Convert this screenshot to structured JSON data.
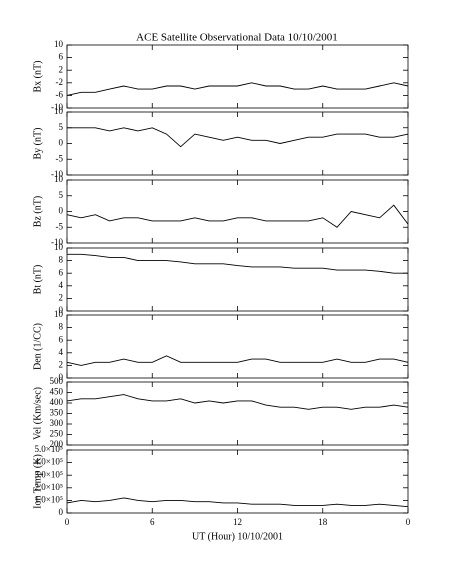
{
  "chart_data": [
    {
      "type": "line",
      "title": "ACE Satellite Observational Data   10/10/2001",
      "ylabel": "Bx (nT)",
      "color": "#000000",
      "xlim": [
        0,
        24
      ],
      "xticks": [
        0,
        6,
        12,
        18,
        {
          "value": 24,
          "label": "0"
        }
      ],
      "ylim": [
        -10,
        10
      ],
      "yticks": [
        -10,
        -6,
        -2,
        2,
        6,
        10
      ],
      "x": [
        0,
        1,
        2,
        3,
        4,
        5,
        6,
        7,
        8,
        9,
        10,
        11,
        12,
        13,
        14,
        15,
        16,
        17,
        18,
        19,
        20,
        21,
        22,
        23,
        24
      ],
      "values": [
        -6,
        -5,
        -5,
        -4,
        -3,
        -4,
        -4,
        -3,
        -3,
        -4,
        -3,
        -3,
        -3,
        -2,
        -3,
        -3,
        -4,
        -4,
        -3,
        -4,
        -4,
        -4,
        -3,
        -2,
        -3
      ]
    },
    {
      "type": "line",
      "ylabel": "By (nT)",
      "color": "#000000",
      "xlim": [
        0,
        24
      ],
      "xticks": [
        0,
        6,
        12,
        18,
        {
          "value": 24,
          "label": "0"
        }
      ],
      "ylim": [
        -10,
        10
      ],
      "yticks": [
        -10,
        -5,
        0,
        5,
        10
      ],
      "x": [
        0,
        1,
        2,
        3,
        4,
        5,
        6,
        7,
        8,
        9,
        10,
        11,
        12,
        13,
        14,
        15,
        16,
        17,
        18,
        19,
        20,
        21,
        22,
        23,
        24
      ],
      "values": [
        5,
        5,
        5,
        4,
        5,
        4,
        5,
        3,
        -1,
        3,
        2,
        1,
        2,
        1,
        1,
        0,
        1,
        2,
        2,
        3,
        3,
        3,
        2,
        2,
        3
      ]
    },
    {
      "type": "line",
      "ylabel": "Bz (nT)",
      "color": "#000000",
      "xlim": [
        0,
        24
      ],
      "xticks": [
        0,
        6,
        12,
        18,
        {
          "value": 24,
          "label": "0"
        }
      ],
      "ylim": [
        -10,
        10
      ],
      "yticks": [
        -10,
        -5,
        0,
        5,
        10
      ],
      "x": [
        0,
        1,
        2,
        3,
        4,
        5,
        6,
        7,
        8,
        9,
        10,
        11,
        12,
        13,
        14,
        15,
        16,
        17,
        18,
        19,
        20,
        21,
        22,
        23,
        24
      ],
      "values": [
        -1,
        -2,
        -1,
        -3,
        -2,
        -2,
        -3,
        -3,
        -3,
        -2,
        -3,
        -3,
        -2,
        -2,
        -3,
        -3,
        -3,
        -3,
        -2,
        -5,
        0,
        -1,
        -2,
        2,
        -4
      ]
    },
    {
      "type": "line",
      "ylabel": "Bt (nT)",
      "color": "#000000",
      "xlim": [
        0,
        24
      ],
      "xticks": [
        0,
        6,
        12,
        18,
        {
          "value": 24,
          "label": "0"
        }
      ],
      "ylim": [
        0,
        10
      ],
      "yticks": [
        0,
        2,
        4,
        6,
        8,
        10
      ],
      "x": [
        0,
        1,
        2,
        3,
        4,
        5,
        6,
        7,
        8,
        9,
        10,
        11,
        12,
        13,
        14,
        15,
        16,
        17,
        18,
        19,
        20,
        21,
        22,
        23,
        24
      ],
      "values": [
        9,
        9,
        8.8,
        8.5,
        8.5,
        8,
        8,
        8,
        7.8,
        7.5,
        7.5,
        7.5,
        7.2,
        7,
        7,
        7,
        6.8,
        6.8,
        6.8,
        6.5,
        6.5,
        6.5,
        6.3,
        6,
        6
      ]
    },
    {
      "type": "line",
      "ylabel": "Den (1/CC)",
      "color": "#000000",
      "xlim": [
        0,
        24
      ],
      "xticks": [
        0,
        6,
        12,
        18,
        {
          "value": 24,
          "label": "0"
        }
      ],
      "ylim": [
        0,
        10
      ],
      "yticks": [
        0,
        2,
        4,
        6,
        8,
        10
      ],
      "x": [
        0,
        1,
        2,
        3,
        4,
        5,
        6,
        7,
        8,
        9,
        10,
        11,
        12,
        13,
        14,
        15,
        16,
        17,
        18,
        19,
        20,
        21,
        22,
        23,
        24
      ],
      "values": [
        2.5,
        2,
        2.5,
        2.5,
        3,
        2.5,
        2.5,
        3.5,
        2.5,
        2.5,
        2.5,
        2.5,
        2.5,
        3,
        3,
        2.5,
        2.5,
        2.5,
        2.5,
        3,
        2.5,
        2.5,
        3,
        3,
        2.5
      ]
    },
    {
      "type": "line",
      "ylabel": "Vel (Km/sec)",
      "color": "#000000",
      "xlim": [
        0,
        24
      ],
      "xticks": [
        0,
        6,
        12,
        18,
        {
          "value": 24,
          "label": "0"
        }
      ],
      "ylim": [
        200,
        500
      ],
      "yticks": [
        200,
        250,
        300,
        350,
        400,
        450,
        500
      ],
      "x": [
        0,
        1,
        2,
        3,
        4,
        5,
        6,
        7,
        8,
        9,
        10,
        11,
        12,
        13,
        14,
        15,
        16,
        17,
        18,
        19,
        20,
        21,
        22,
        23,
        24
      ],
      "values": [
        410,
        420,
        420,
        430,
        440,
        420,
        410,
        410,
        420,
        400,
        410,
        400,
        410,
        410,
        390,
        380,
        380,
        370,
        380,
        380,
        370,
        380,
        380,
        390,
        380
      ]
    },
    {
      "type": "line",
      "ylabel": "Ion Temp (K)",
      "xlabel": "UT (Hour)   10/10/2001",
      "color": "#000000",
      "xlim": [
        0,
        24
      ],
      "xticks": [
        0,
        6,
        12,
        18,
        {
          "value": 24,
          "label": "0"
        }
      ],
      "ylim": [
        0,
        500000
      ],
      "yticks": [
        0,
        {
          "value": 100000,
          "label": "1.0×10⁵"
        },
        {
          "value": 200000,
          "label": "2.0×10⁵"
        },
        {
          "value": 300000,
          "label": "3.0×10⁵"
        },
        {
          "value": 400000,
          "label": "4.0×10⁵"
        },
        {
          "value": 500000,
          "label": "5.0×10⁵"
        }
      ],
      "x": [
        0,
        1,
        2,
        3,
        4,
        5,
        6,
        7,
        8,
        9,
        10,
        11,
        12,
        13,
        14,
        15,
        16,
        17,
        18,
        19,
        20,
        21,
        22,
        23,
        24
      ],
      "values": [
        80000,
        100000,
        90000,
        100000,
        120000,
        100000,
        90000,
        100000,
        100000,
        90000,
        90000,
        80000,
        80000,
        70000,
        70000,
        70000,
        60000,
        60000,
        60000,
        70000,
        60000,
        60000,
        70000,
        60000,
        50000
      ]
    }
  ]
}
